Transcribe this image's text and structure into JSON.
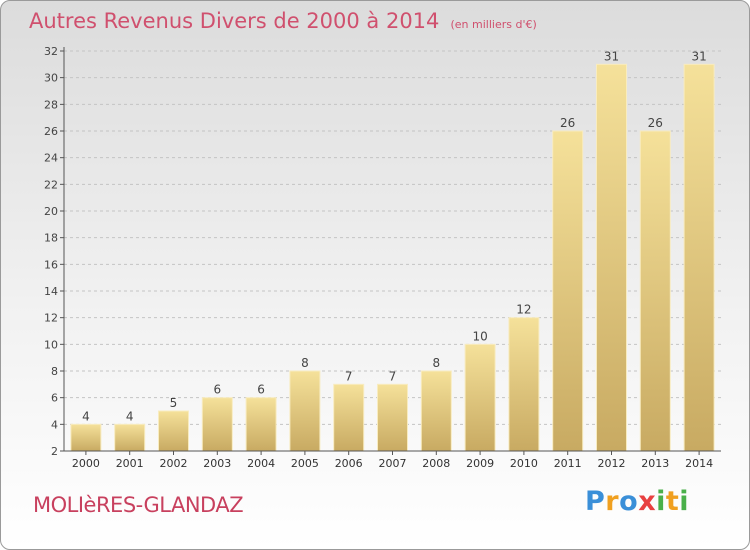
{
  "header": {
    "title": "Autres Revenus Divers de 2000 à 2014",
    "unit": "(en milliers d'€)"
  },
  "footer": {
    "location": "MOLIèRES-GLANDAZ",
    "brand": "Proxiti"
  },
  "colors": {
    "title": "#d0506e",
    "bar_light": "#f5e19a",
    "bar_dark": "#c8aa62"
  },
  "chart_data": {
    "type": "bar",
    "title": "Autres Revenus Divers de 2000 à 2014",
    "subtitle": "(en milliers d'€)",
    "xlabel": "",
    "ylabel": "",
    "categories": [
      "2000",
      "2001",
      "2002",
      "2003",
      "2004",
      "2005",
      "2006",
      "2007",
      "2008",
      "2009",
      "2010",
      "2011",
      "2012",
      "2013",
      "2014"
    ],
    "values": [
      4,
      4,
      5,
      6,
      6,
      8,
      7,
      7,
      8,
      10,
      12,
      26,
      31,
      26,
      31
    ],
    "ylim": [
      2,
      32
    ],
    "yticks": [
      2,
      4,
      6,
      8,
      10,
      12,
      14,
      16,
      18,
      20,
      22,
      24,
      26,
      28,
      30,
      32
    ],
    "grid": true
  }
}
